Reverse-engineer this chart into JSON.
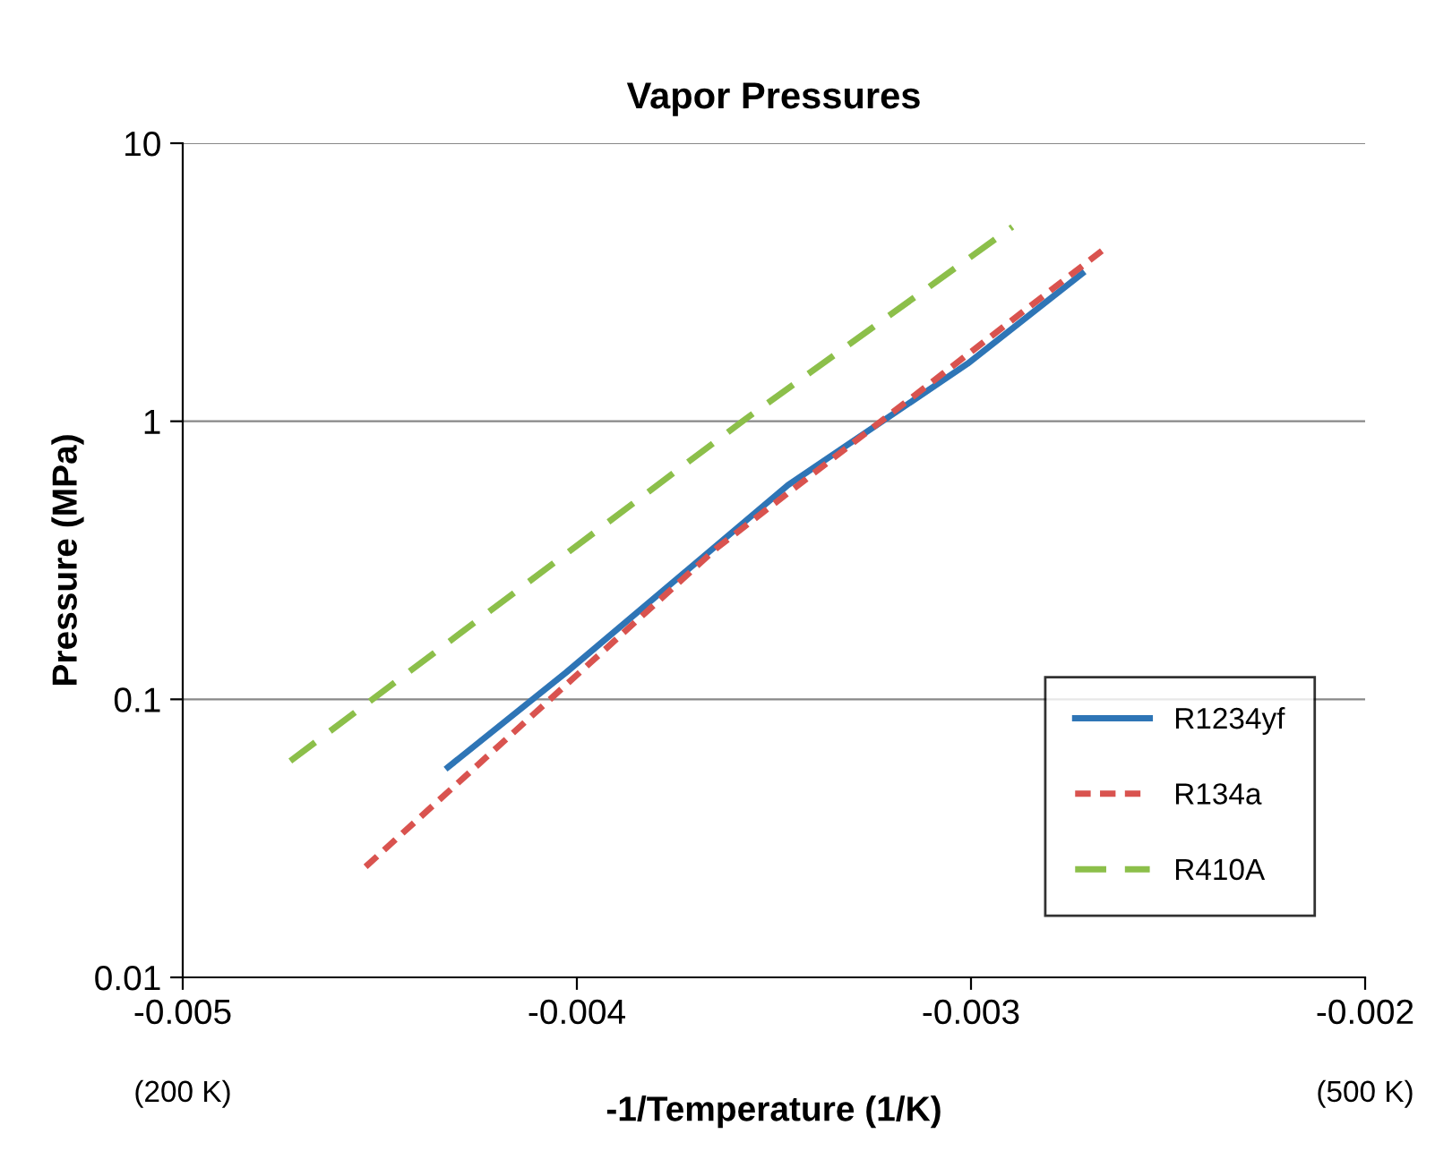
{
  "chart_data": {
    "type": "line",
    "title": "Vapor Pressures",
    "xlabel": "-1/Temperature (1/K)",
    "ylabel": "Pressure (MPa)",
    "log": "y",
    "xlim": [
      -0.005,
      -0.002
    ],
    "xticks": [
      -0.005,
      -0.004,
      -0.003,
      -0.002
    ],
    "ylim": [
      0.01,
      10
    ],
    "yticks": [
      0.01,
      0.1,
      1,
      10
    ],
    "grid": "y",
    "legend": "right",
    "marker": "none",
    "annotations": [
      "(200 K)",
      "(500 K)"
    ],
    "series": [
      {
        "name": "R1234yf",
        "color": "#2e75b6",
        "line_style": "solid",
        "x": [
          -0.004327,
          -0.004027,
          -0.003464,
          -0.003009,
          -0.002718
        ],
        "values": [
          0.057,
          0.125,
          0.59,
          1.61,
          3.4
        ]
      },
      {
        "name": "R134a",
        "color": "#d9534f",
        "line_style": "dotted",
        "x": [
          -0.004536,
          -0.003645,
          -0.002668
        ],
        "values": [
          0.025,
          0.35,
          4.1
        ]
      },
      {
        "name": "R410A",
        "color": "#8cbf4a",
        "line_style": "dashed",
        "x": [
          -0.004727,
          -0.00358,
          -0.002895
        ],
        "values": [
          0.06,
          1.0,
          5.0
        ]
      }
    ]
  }
}
